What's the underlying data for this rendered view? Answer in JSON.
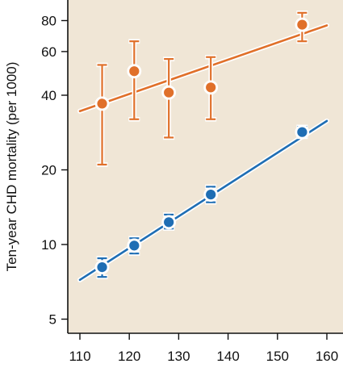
{
  "chart_data": {
    "type": "scatter",
    "title": "",
    "xlabel": "",
    "ylabel": "Ten-year CHD mortality (per 1000)",
    "y_scale": "log",
    "xlim": [
      110,
      160
    ],
    "ylim": [
      4.4,
      95
    ],
    "x_ticks": [
      110,
      120,
      130,
      140,
      150,
      160
    ],
    "x_tick_labels": [
      "110",
      "120",
      "130",
      "140",
      "150",
      "160"
    ],
    "y_ticks": [
      5,
      10,
      20,
      40,
      60,
      80
    ],
    "y_tick_labels": [
      "5",
      "10",
      "20",
      "40",
      "60",
      "80"
    ],
    "grid": false,
    "background_color": "#f0e6d6",
    "series": [
      {
        "color": "#e0702a",
        "points": [
          {
            "x": 114.5,
            "y": 37,
            "low": 21,
            "high": 53
          },
          {
            "x": 121.0,
            "y": 50,
            "low": 32,
            "high": 66
          },
          {
            "x": 128.0,
            "y": 41,
            "low": 27,
            "high": 56
          },
          {
            "x": 136.5,
            "y": 43,
            "low": 32,
            "high": 57
          },
          {
            "x": 155.0,
            "y": 77,
            "low": 66,
            "high": 86
          }
        ],
        "fit": {
          "x": [
            110,
            160
          ],
          "y": [
            34.5,
            76.5
          ]
        }
      },
      {
        "color": "#1f6eb4",
        "points": [
          {
            "x": 114.5,
            "y": 8.1,
            "low": 7.4,
            "high": 8.8
          },
          {
            "x": 121.0,
            "y": 9.9,
            "low": 9.2,
            "high": 10.6
          },
          {
            "x": 128.0,
            "y": 12.3,
            "low": 11.6,
            "high": 13.2
          },
          {
            "x": 136.5,
            "y": 15.9,
            "low": 14.8,
            "high": 17.1
          },
          {
            "x": 155.0,
            "y": 28.4,
            "low": 27.2,
            "high": 29.8
          }
        ],
        "fit": {
          "x": [
            110,
            160
          ],
          "y": [
            7.2,
            31.5
          ]
        }
      }
    ]
  }
}
